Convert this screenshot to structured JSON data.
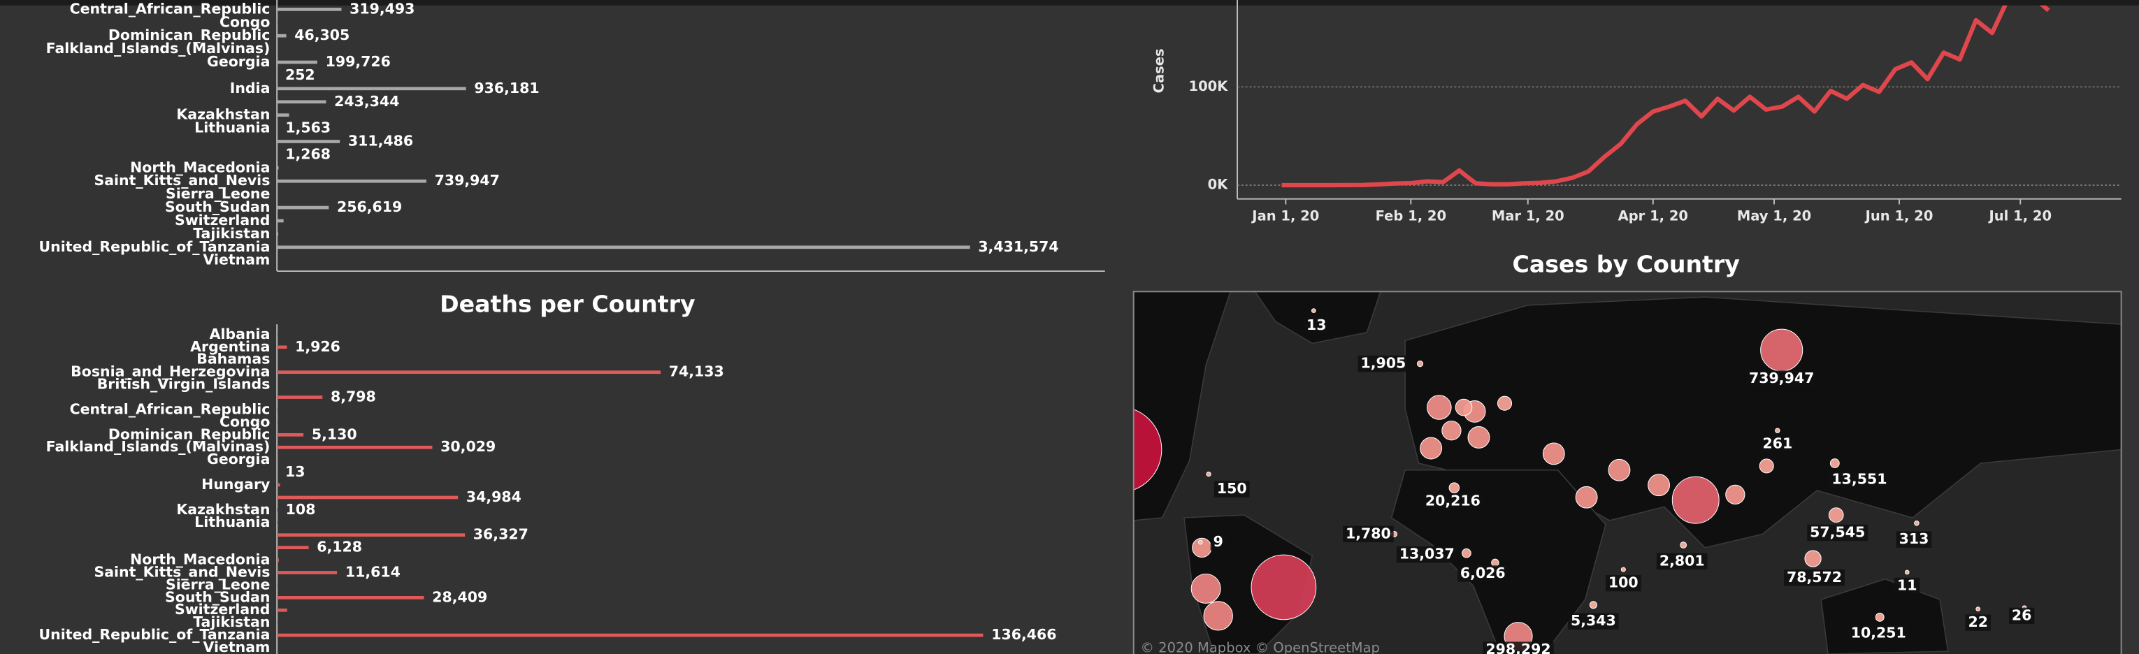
{
  "chart_data": [
    {
      "type": "hbar",
      "categories": [
        "Central_African_Republic",
        "Congo",
        "Dominican_Republic",
        "Falkland_Islands_(Malvinas)",
        "Georgia",
        null,
        "India",
        null,
        "Kazakhstan",
        "Lithuania",
        null,
        null,
        "North_Macedonia",
        "Saint_Kitts_and_Nevis",
        "Sierra_Leone",
        "South_Sudan",
        "Switzerland",
        "Tajikistan",
        "United_Republic_of_Tanzania",
        "Vietnam"
      ],
      "values": [
        319493,
        3000,
        46305,
        13,
        199726,
        252,
        936181,
        243344,
        60000,
        1563,
        311486,
        1268,
        8000,
        739947,
        1600,
        256619,
        33000,
        6500,
        3431574,
        370
      ],
      "value_labels": [
        "319,493",
        null,
        "46,305",
        null,
        "199,726",
        "252",
        "936,181",
        "243,344",
        null,
        "1,563",
        "311,486",
        "1,268",
        null,
        "739,947",
        null,
        "256,619",
        null,
        null,
        "3,431,574",
        null
      ],
      "color": "#a8a8a8",
      "xlim": [
        0,
        4100000
      ]
    },
    {
      "type": "hbar",
      "title": "Deaths per Country",
      "categories": [
        "Albania",
        "Argentina",
        "Bahamas",
        "Bosnia_and_Herzegovina",
        "British_Virgin_Islands",
        null,
        "Central_African_Republic",
        "Congo",
        "Dominican_Republic",
        "Falkland_Islands_(Malvinas)",
        "Georgia",
        null,
        "Hungary",
        null,
        "Kazakhstan",
        "Lithuania",
        null,
        null,
        "North_Macedonia",
        "Saint_Kitts_and_Nevis",
        "Sierra_Leone",
        "South_Sudan",
        "Switzerland",
        "Tajikistan",
        "United_Republic_of_Tanzania",
        "Vietnam"
      ],
      "values": [
        48,
        1926,
        11,
        74133,
        1,
        8798,
        62,
        50,
        5130,
        30029,
        15,
        13,
        595,
        34984,
        108,
        79,
        36327,
        6128,
        370,
        11614,
        63,
        28409,
        1968,
        56,
        136466,
        0
      ],
      "value_labels": [
        null,
        "1,926",
        null,
        "74,133",
        null,
        "8,798",
        null,
        null,
        "5,130",
        "30,029",
        null,
        "13",
        null,
        "34,984",
        "108",
        null,
        "36,327",
        "6,128",
        null,
        "11,614",
        null,
        "28,409",
        null,
        null,
        "136,466",
        null
      ],
      "color": "#e05a5a",
      "xlim": [
        0,
        160000
      ]
    },
    {
      "type": "line",
      "y_label": "Cases",
      "x": [
        "2019-12-31",
        "2020-01-04",
        "2020-01-08",
        "2020-01-12",
        "2020-01-16",
        "2020-01-20",
        "2020-01-24",
        "2020-01-28",
        "2020-02-01",
        "2020-02-05",
        "2020-02-09",
        "2020-02-13",
        "2020-02-17",
        "2020-02-21",
        "2020-02-25",
        "2020-02-29",
        "2020-03-04",
        "2020-03-08",
        "2020-03-12",
        "2020-03-16",
        "2020-03-20",
        "2020-03-24",
        "2020-03-28",
        "2020-04-01",
        "2020-04-05",
        "2020-04-09",
        "2020-04-13",
        "2020-04-17",
        "2020-04-21",
        "2020-04-25",
        "2020-04-29",
        "2020-05-03",
        "2020-05-07",
        "2020-05-11",
        "2020-05-15",
        "2020-05-19",
        "2020-05-23",
        "2020-05-27",
        "2020-05-31",
        "2020-06-04",
        "2020-06-08",
        "2020-06-12",
        "2020-06-16",
        "2020-06-20",
        "2020-06-24",
        "2020-06-28",
        "2020-07-02",
        "2020-07-06",
        "2020-07-08"
      ],
      "series": [
        {
          "color": "#e0474c",
          "values": [
            0,
            0,
            0,
            0,
            100,
            200,
            800,
            1700,
            2100,
            3900,
            3100,
            15000,
            2000,
            900,
            900,
            1900,
            2400,
            3900,
            7500,
            14000,
            29000,
            42000,
            62000,
            75000,
            80000,
            86000,
            70000,
            88000,
            76000,
            90000,
            77000,
            80000,
            90000,
            75000,
            96000,
            88000,
            102000,
            95000,
            118000,
            125000,
            108000,
            135000,
            128000,
            168000,
            155000,
            190000,
            205000,
            185000,
            178000
          ]
        }
      ],
      "xlim": [
        "2019-12-20",
        "2020-07-26"
      ],
      "xticks": [
        {
          "value": "2020-01-01",
          "label": "Jan 1, 20"
        },
        {
          "value": "2020-02-01",
          "label": "Feb 1, 20"
        },
        {
          "value": "2020-03-01",
          "label": "Mar 1, 20"
        },
        {
          "value": "2020-04-01",
          "label": "Apr 1, 20"
        },
        {
          "value": "2020-05-01",
          "label": "May 1, 20"
        },
        {
          "value": "2020-06-01",
          "label": "Jun 1, 20"
        },
        {
          "value": "2020-07-01",
          "label": "Jul 1, 20"
        }
      ],
      "ylim": [
        -14000,
        183000
      ],
      "yticks": [
        {
          "value": 0,
          "label": "0K"
        },
        {
          "value": 100000,
          "label": "100K"
        }
      ]
    },
    {
      "type": "map",
      "title": "Cases by Country",
      "attribution": "© 2020 Mapbox © OpenStreetMap",
      "values": [
        13,
        1905,
        739947,
        261,
        13551,
        150,
        20216,
        1780,
        13037,
        6026,
        2801,
        57545,
        313,
        78572,
        100,
        11,
        5343,
        10251,
        22,
        26,
        298292,
        9,
        936181,
        1884967,
        3431574,
        330000,
        319493,
        118000,
        210000,
        160000,
        118000,
        160000,
        160000,
        82000,
        53000,
        160000,
        160000,
        160000,
        160000,
        118000,
        53000
      ],
      "value_labels": [
        "13",
        "1,905",
        "739,947",
        "261",
        "13,551",
        "150",
        "20,216",
        "1,780",
        "13,037",
        "6,026",
        "2,801",
        "57,545",
        "313",
        "78,572",
        "100",
        "11",
        "5,343",
        "10,251",
        "22",
        "26",
        "298,292",
        "9",
        null,
        null,
        null,
        null,
        null,
        null,
        null,
        null,
        null,
        null,
        null,
        null,
        null,
        null,
        null,
        null,
        null,
        null,
        null
      ],
      "colors": [
        "#fbb4a0",
        "#c2133b"
      ]
    }
  ]
}
